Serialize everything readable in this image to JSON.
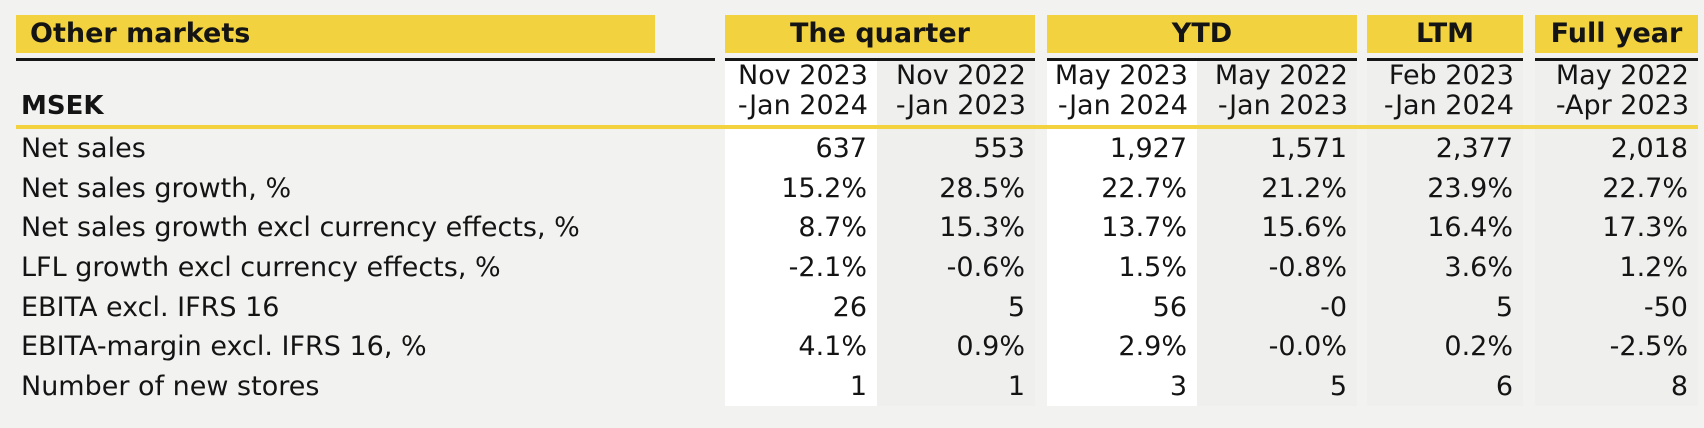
{
  "table": {
    "title": "Other markets",
    "unit_label": "MSEK",
    "colors": {
      "accent_yellow": "#f2d23e",
      "page_background": "#f2f2f1",
      "group_band_gray": "#efefee",
      "current_period_highlight": "#ffffff",
      "text": "#141414"
    },
    "groups": [
      {
        "label": "The quarter",
        "periods": [
          {
            "line1": "Nov 2023",
            "line2": "-Jan 2024"
          },
          {
            "line1": "Nov 2022",
            "line2": "-Jan 2023"
          }
        ]
      },
      {
        "label": "YTD",
        "periods": [
          {
            "line1": "May 2023",
            "line2": "-Jan 2024"
          },
          {
            "line1": "May 2022",
            "line2": "-Jan 2023"
          }
        ]
      },
      {
        "label": "LTM",
        "periods": [
          {
            "line1": "Feb 2023",
            "line2": "-Jan 2024"
          }
        ]
      },
      {
        "label": "Full year",
        "periods": [
          {
            "line1": "May 2022",
            "line2": "-Apr 2023"
          }
        ]
      }
    ],
    "rows": [
      {
        "label": "Net sales",
        "values": [
          "637",
          "553",
          "1,927",
          "1,571",
          "2,377",
          "2,018"
        ]
      },
      {
        "label": "Net sales growth, %",
        "values": [
          "15.2%",
          "28.5%",
          "22.7%",
          "21.2%",
          "23.9%",
          "22.7%"
        ]
      },
      {
        "label": "Net sales growth excl currency effects, %",
        "values": [
          "8.7%",
          "15.3%",
          "13.7%",
          "15.6%",
          "16.4%",
          "17.3%"
        ]
      },
      {
        "label": "LFL growth excl currency effects, %",
        "values": [
          "-2.1%",
          "-0.6%",
          "1.5%",
          "-0.8%",
          "3.6%",
          "1.2%"
        ]
      },
      {
        "label": "EBITA excl. IFRS 16",
        "values": [
          "26",
          "5",
          "56",
          "-0",
          "5",
          "-50"
        ]
      },
      {
        "label": "EBITA-margin excl. IFRS 16, %",
        "values": [
          "4.1%",
          "0.9%",
          "2.9%",
          "-0.0%",
          "0.2%",
          "-2.5%"
        ]
      },
      {
        "label": "Number of new stores",
        "values": [
          "1",
          "1",
          "3",
          "5",
          "6",
          "8"
        ]
      }
    ]
  }
}
